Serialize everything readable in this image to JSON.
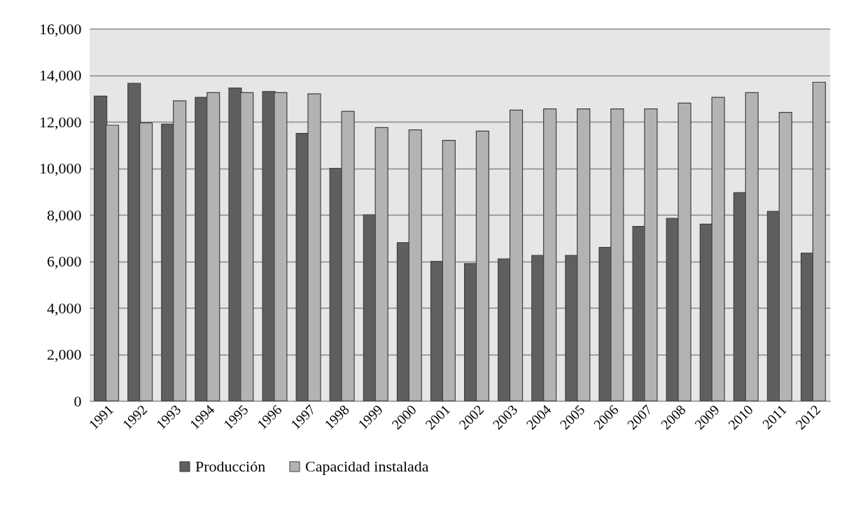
{
  "chart_data": {
    "type": "bar",
    "categories": [
      "1991",
      "1992",
      "1993",
      "1994",
      "1995",
      "1996",
      "1997",
      "1998",
      "1999",
      "2000",
      "2001",
      "2002",
      "2003",
      "2004",
      "2005",
      "2006",
      "2007",
      "2008",
      "2009",
      "2010",
      "2011",
      "2012"
    ],
    "series": [
      {
        "name": "Producción",
        "color": "#5f5f5f",
        "values": [
          13100,
          13650,
          11900,
          13050,
          13450,
          13300,
          11500,
          10000,
          8000,
          6800,
          6000,
          5900,
          6100,
          6250,
          6250,
          6600,
          7500,
          7850,
          7600,
          8950,
          8150,
          6350
        ]
      },
      {
        "name": "Capacidad instalada",
        "color": "#b3b3b3",
        "values": [
          11850,
          11950,
          12900,
          13250,
          13250,
          13250,
          13200,
          12450,
          11750,
          11650,
          11200,
          11600,
          12500,
          12550,
          12550,
          12550,
          12550,
          12800,
          13050,
          13250,
          12400,
          13700
        ]
      }
    ],
    "ylim": [
      0,
      16000
    ],
    "yticks": [
      0,
      {
        "value": 2000,
        "label": "2,000"
      },
      {
        "value": 4000,
        "label": "4,000"
      },
      {
        "value": 6000,
        "label": "6,000"
      },
      {
        "value": 8000,
        "label": "8,000"
      },
      {
        "value": 10000,
        "label": "10,000"
      },
      {
        "value": 12000,
        "label": "12,000"
      },
      {
        "value": 14000,
        "label": "14,000"
      },
      {
        "value": 16000,
        "label": "16,000"
      }
    ],
    "grid": "y",
    "legend": "bottom"
  }
}
